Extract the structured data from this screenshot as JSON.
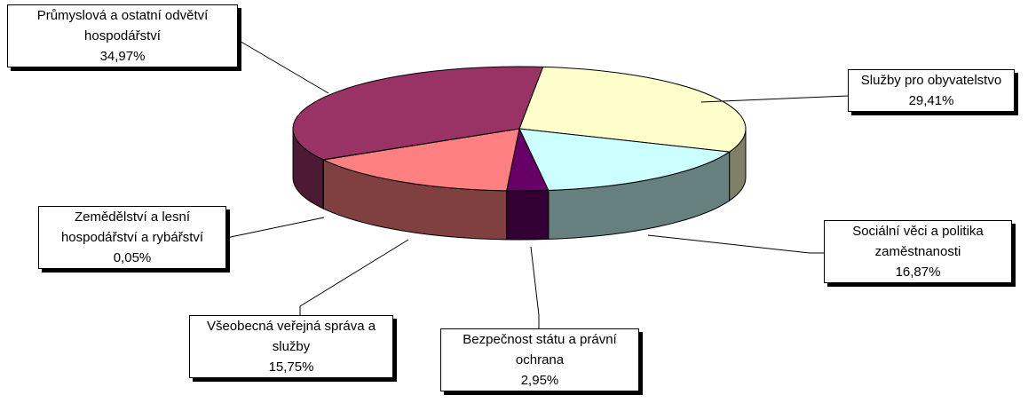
{
  "chart_data": {
    "type": "pie3d",
    "categories": [
      "Služby pro obyvatelstvo",
      "Sociální věci a politika zaměstnanosti",
      "Bezpečnost státu a právní ochrana",
      "Všeobecná veřejná správa a služby",
      "Zemědělství a lesní hospodářství a rybářství",
      "Průmyslová a ostatní odvětví hospodářství"
    ],
    "values": [
      29.41,
      16.87,
      2.95,
      15.75,
      0.05,
      34.97
    ],
    "value_labels": [
      "29,41%",
      "16,87%",
      "2,95%",
      "15,75%",
      "0,05%",
      "34,97%"
    ],
    "colors": [
      "#ffffcc",
      "#ccffff",
      "#660066",
      "#ff8080",
      "#0066cc",
      "#993366"
    ],
    "side_colors": [
      "#808066",
      "#668080",
      "#330033",
      "#804040",
      "#003366",
      "#4d1a33"
    ]
  }
}
